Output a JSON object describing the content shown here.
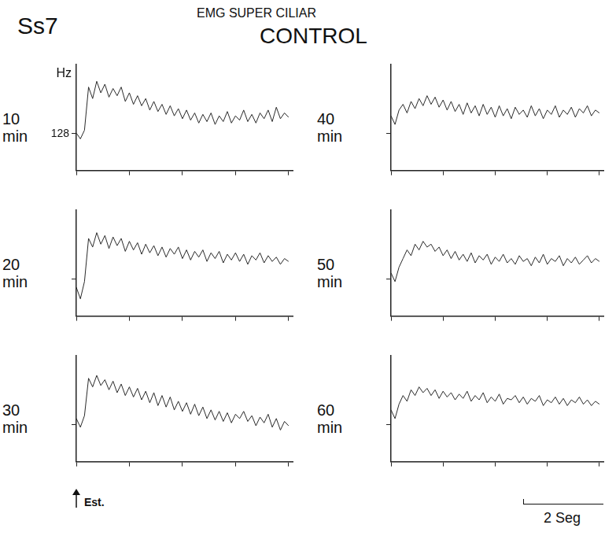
{
  "header": {
    "subject": "Ss7",
    "title": "EMG SUPER CILIAR",
    "condition": "CONTROL"
  },
  "stimulus": {
    "label": "Est.",
    "x": 0
  },
  "scale_bar": {
    "label": "2 Seg",
    "length": 2
  },
  "chart_data": [
    {
      "type": "line",
      "title": "10 min",
      "y_label": "Hz",
      "color": "#2a2a2a",
      "marker": "none",
      "line_style": "solid",
      "grid": false,
      "tick_labels": "y",
      "xlim": [
        0,
        5.3
      ],
      "xticks": [
        0,
        1.3,
        2.6,
        3.9,
        5.2
      ],
      "ylim": [
        0,
        370
      ],
      "yticks": [
        128
      ],
      "x": [
        0,
        0.1,
        0.2,
        0.3,
        0.4,
        0.5,
        0.6,
        0.7,
        0.8,
        0.9,
        1,
        1.1,
        1.2,
        1.3,
        1.4,
        1.5,
        1.6,
        1.7,
        1.8,
        1.9,
        2,
        2.1,
        2.2,
        2.3,
        2.4,
        2.5,
        2.6,
        2.7,
        2.8,
        2.9,
        3,
        3.1,
        3.2,
        3.3,
        3.4,
        3.5,
        3.6,
        3.7,
        3.8,
        3.9,
        4,
        4.1,
        4.2,
        4.3,
        4.4,
        4.5,
        4.6,
        4.7,
        4.8,
        4.9,
        5,
        5.1,
        5.2
      ],
      "values": [
        130,
        110,
        140,
        290,
        250,
        310,
        270,
        300,
        255,
        285,
        260,
        290,
        240,
        270,
        230,
        260,
        225,
        250,
        210,
        240,
        205,
        230,
        195,
        225,
        190,
        215,
        180,
        210,
        175,
        200,
        165,
        195,
        170,
        200,
        160,
        190,
        170,
        205,
        165,
        190,
        175,
        210,
        170,
        195,
        165,
        200,
        180,
        210,
        170,
        220,
        180,
        200,
        185
      ]
    },
    {
      "type": "line",
      "title": "20 min",
      "color": "#2a2a2a",
      "marker": "none",
      "line_style": "solid",
      "grid": false,
      "tick_labels": false,
      "xlim": [
        0,
        5.3
      ],
      "xticks": [
        0,
        1.3,
        2.6,
        3.9,
        5.2
      ],
      "ylim": [
        0,
        370
      ],
      "yticks": [
        128
      ],
      "x": [
        0,
        0.1,
        0.2,
        0.3,
        0.4,
        0.5,
        0.6,
        0.7,
        0.8,
        0.9,
        1,
        1.1,
        1.2,
        1.3,
        1.4,
        1.5,
        1.6,
        1.7,
        1.8,
        1.9,
        2,
        2.1,
        2.2,
        2.3,
        2.4,
        2.5,
        2.6,
        2.7,
        2.8,
        2.9,
        3,
        3.1,
        3.2,
        3.3,
        3.4,
        3.5,
        3.6,
        3.7,
        3.8,
        3.9,
        4,
        4.1,
        4.2,
        4.3,
        4.4,
        4.5,
        4.6,
        4.7,
        4.8,
        4.9,
        5,
        5.1,
        5.2
      ],
      "values": [
        100,
        60,
        120,
        270,
        240,
        290,
        250,
        280,
        235,
        275,
        245,
        270,
        225,
        260,
        230,
        255,
        215,
        250,
        220,
        245,
        210,
        240,
        205,
        235,
        215,
        240,
        200,
        230,
        195,
        225,
        205,
        230,
        190,
        220,
        200,
        225,
        185,
        215,
        195,
        220,
        190,
        215,
        180,
        210,
        195,
        220,
        185,
        210,
        190,
        205,
        180,
        200,
        190
      ]
    },
    {
      "type": "line",
      "title": "30 min",
      "color": "#2a2a2a",
      "marker": "none",
      "line_style": "solid",
      "grid": false,
      "tick_labels": false,
      "xlim": [
        0,
        5.3
      ],
      "xticks": [
        0,
        1.3,
        2.6,
        3.9,
        5.2
      ],
      "ylim": [
        0,
        370
      ],
      "yticks": [
        128
      ],
      "x": [
        0,
        0.1,
        0.2,
        0.3,
        0.4,
        0.5,
        0.6,
        0.7,
        0.8,
        0.9,
        1,
        1.1,
        1.2,
        1.3,
        1.4,
        1.5,
        1.6,
        1.7,
        1.8,
        1.9,
        2,
        2.1,
        2.2,
        2.3,
        2.4,
        2.5,
        2.6,
        2.7,
        2.8,
        2.9,
        3,
        3.1,
        3.2,
        3.3,
        3.4,
        3.5,
        3.6,
        3.7,
        3.8,
        3.9,
        4,
        4.1,
        4.2,
        4.3,
        4.4,
        4.5,
        4.6,
        4.7,
        4.8,
        4.9,
        5,
        5.1,
        5.2
      ],
      "values": [
        150,
        120,
        160,
        290,
        260,
        300,
        265,
        285,
        250,
        280,
        240,
        270,
        230,
        260,
        225,
        255,
        215,
        245,
        205,
        240,
        195,
        230,
        190,
        225,
        180,
        210,
        175,
        205,
        165,
        200,
        160,
        190,
        150,
        180,
        145,
        175,
        140,
        170,
        135,
        165,
        150,
        175,
        140,
        160,
        125,
        155,
        135,
        165,
        120,
        150,
        110,
        140,
        125
      ]
    },
    {
      "type": "line",
      "title": "40 min",
      "color": "#2a2a2a",
      "marker": "none",
      "line_style": "solid",
      "grid": false,
      "tick_labels": false,
      "xlim": [
        0,
        5.3
      ],
      "xticks": [
        0,
        1.3,
        2.6,
        3.9,
        5.2
      ],
      "ylim": [
        0,
        370
      ],
      "yticks": [
        128
      ],
      "x": [
        0,
        0.1,
        0.2,
        0.3,
        0.4,
        0.5,
        0.6,
        0.7,
        0.8,
        0.9,
        1,
        1.1,
        1.2,
        1.3,
        1.4,
        1.5,
        1.6,
        1.7,
        1.8,
        1.9,
        2,
        2.1,
        2.2,
        2.3,
        2.4,
        2.5,
        2.6,
        2.7,
        2.8,
        2.9,
        3,
        3.1,
        3.2,
        3.3,
        3.4,
        3.5,
        3.6,
        3.7,
        3.8,
        3.9,
        4,
        4.1,
        4.2,
        4.3,
        4.4,
        4.5,
        4.6,
        4.7,
        4.8,
        4.9,
        5,
        5.1,
        5.2
      ],
      "values": [
        190,
        160,
        210,
        230,
        200,
        240,
        215,
        250,
        225,
        260,
        230,
        255,
        220,
        245,
        210,
        240,
        205,
        230,
        195,
        235,
        200,
        225,
        190,
        230,
        195,
        220,
        185,
        225,
        190,
        215,
        180,
        220,
        195,
        210,
        185,
        225,
        190,
        215,
        180,
        210,
        195,
        225,
        185,
        210,
        195,
        220,
        185,
        215,
        200,
        225,
        190,
        210,
        200
      ]
    },
    {
      "type": "line",
      "title": "50 min",
      "color": "#2a2a2a",
      "marker": "none",
      "line_style": "solid",
      "grid": false,
      "tick_labels": false,
      "xlim": [
        0,
        5.3
      ],
      "xticks": [
        0,
        1.3,
        2.6,
        3.9,
        5.2
      ],
      "ylim": [
        0,
        370
      ],
      "yticks": [
        128
      ],
      "x": [
        0,
        0.1,
        0.2,
        0.3,
        0.4,
        0.5,
        0.6,
        0.7,
        0.8,
        0.9,
        1,
        1.1,
        1.2,
        1.3,
        1.4,
        1.5,
        1.6,
        1.7,
        1.8,
        1.9,
        2,
        2.1,
        2.2,
        2.3,
        2.4,
        2.5,
        2.6,
        2.7,
        2.8,
        2.9,
        3,
        3.1,
        3.2,
        3.3,
        3.4,
        3.5,
        3.6,
        3.7,
        3.8,
        3.9,
        4,
        4.1,
        4.2,
        4.3,
        4.4,
        4.5,
        4.6,
        4.7,
        4.8,
        4.9,
        5,
        5.1,
        5.2
      ],
      "values": [
        150,
        120,
        170,
        200,
        230,
        210,
        250,
        230,
        260,
        240,
        250,
        225,
        240,
        210,
        230,
        200,
        225,
        195,
        215,
        190,
        220,
        185,
        210,
        195,
        215,
        180,
        205,
        190,
        215,
        185,
        200,
        180,
        210,
        190,
        200,
        175,
        205,
        185,
        215,
        180,
        200,
        190,
        210,
        175,
        200,
        185,
        205,
        180,
        195,
        210,
        185,
        200,
        190
      ]
    },
    {
      "type": "line",
      "title": "60 min",
      "color": "#2a2a2a",
      "marker": "none",
      "line_style": "solid",
      "grid": false,
      "tick_labels": false,
      "xlim": [
        0,
        5.3
      ],
      "xticks": [
        0,
        1.3,
        2.6,
        3.9,
        5.2
      ],
      "ylim": [
        0,
        370
      ],
      "yticks": [
        128
      ],
      "x": [
        0,
        0.1,
        0.2,
        0.3,
        0.4,
        0.5,
        0.6,
        0.7,
        0.8,
        0.9,
        1,
        1.1,
        1.2,
        1.3,
        1.4,
        1.5,
        1.6,
        1.7,
        1.8,
        1.9,
        2,
        2.1,
        2.2,
        2.3,
        2.4,
        2.5,
        2.6,
        2.7,
        2.8,
        2.9,
        3,
        3.1,
        3.2,
        3.3,
        3.4,
        3.5,
        3.6,
        3.7,
        3.8,
        3.9,
        4,
        4.1,
        4.2,
        4.3,
        4.4,
        4.5,
        4.6,
        4.7,
        4.8,
        4.9,
        5,
        5.1,
        5.2
      ],
      "values": [
        180,
        150,
        200,
        230,
        210,
        250,
        230,
        260,
        240,
        255,
        230,
        250,
        220,
        245,
        225,
        240,
        215,
        235,
        220,
        245,
        210,
        230,
        215,
        240,
        205,
        225,
        210,
        235,
        200,
        220,
        215,
        230,
        205,
        225,
        200,
        220,
        210,
        230,
        195,
        215,
        205,
        225,
        200,
        220,
        195,
        215,
        205,
        225,
        200,
        215,
        195,
        210,
        200
      ]
    }
  ]
}
